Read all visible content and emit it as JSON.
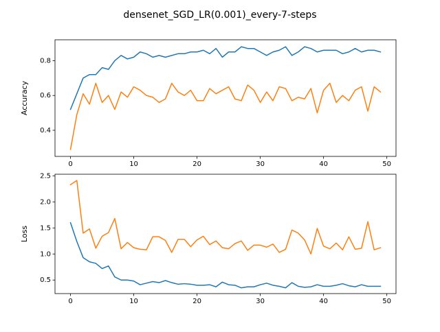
{
  "figure": {
    "title": "densenet_SGD_LR(0.001)_every-7-steps"
  },
  "chart_data": [
    {
      "type": "line",
      "ylabel": "Accuracy",
      "xlabel": "",
      "xlim": [
        -2.45,
        51.45
      ],
      "ylim": [
        0.25,
        0.92
      ],
      "xticks": [
        0,
        10,
        20,
        30,
        40,
        50
      ],
      "yticks": [
        0.4,
        0.6,
        0.8
      ],
      "ytick_labels": [
        "0.4",
        "0.6",
        "0.8"
      ],
      "x": [
        0,
        1,
        2,
        3,
        4,
        5,
        6,
        7,
        8,
        9,
        10,
        11,
        12,
        13,
        14,
        15,
        16,
        17,
        18,
        19,
        20,
        21,
        22,
        23,
        24,
        25,
        26,
        27,
        28,
        29,
        30,
        31,
        32,
        33,
        34,
        35,
        36,
        37,
        38,
        39,
        40,
        41,
        42,
        43,
        44,
        45,
        46,
        47,
        48,
        49
      ],
      "series": [
        {
          "color": "#1f77b4",
          "values": [
            0.52,
            0.61,
            0.7,
            0.72,
            0.72,
            0.76,
            0.75,
            0.8,
            0.83,
            0.81,
            0.82,
            0.85,
            0.84,
            0.82,
            0.83,
            0.82,
            0.83,
            0.84,
            0.84,
            0.85,
            0.85,
            0.86,
            0.84,
            0.87,
            0.82,
            0.85,
            0.85,
            0.88,
            0.87,
            0.87,
            0.85,
            0.83,
            0.85,
            0.86,
            0.88,
            0.83,
            0.85,
            0.88,
            0.87,
            0.85,
            0.86,
            0.86,
            0.86,
            0.84,
            0.85,
            0.87,
            0.85,
            0.86,
            0.86,
            0.85
          ]
        },
        {
          "color": "#ff7f0e",
          "values": [
            0.29,
            0.49,
            0.61,
            0.55,
            0.67,
            0.56,
            0.6,
            0.52,
            0.62,
            0.59,
            0.65,
            0.63,
            0.6,
            0.59,
            0.56,
            0.58,
            0.67,
            0.62,
            0.6,
            0.63,
            0.57,
            0.57,
            0.64,
            0.61,
            0.63,
            0.65,
            0.58,
            0.57,
            0.66,
            0.63,
            0.56,
            0.62,
            0.57,
            0.65,
            0.64,
            0.57,
            0.59,
            0.58,
            0.64,
            0.5,
            0.63,
            0.67,
            0.56,
            0.6,
            0.57,
            0.63,
            0.65,
            0.51,
            0.65,
            0.62
          ]
        }
      ]
    },
    {
      "type": "line",
      "ylabel": "Loss",
      "xlabel": "",
      "xlim": [
        -2.45,
        51.45
      ],
      "ylim": [
        0.24,
        2.53
      ],
      "xticks": [
        0,
        10,
        20,
        30,
        40,
        50
      ],
      "yticks": [
        0.5,
        1.0,
        1.5,
        2.0,
        2.5
      ],
      "ytick_labels": [
        "0.5",
        "1.0",
        "1.5",
        "2.0",
        "2.5"
      ],
      "x": [
        0,
        1,
        2,
        3,
        4,
        5,
        6,
        7,
        8,
        9,
        10,
        11,
        12,
        13,
        14,
        15,
        16,
        17,
        18,
        19,
        20,
        21,
        22,
        23,
        24,
        25,
        26,
        27,
        28,
        29,
        30,
        31,
        32,
        33,
        34,
        35,
        36,
        37,
        38,
        39,
        40,
        41,
        42,
        43,
        44,
        45,
        46,
        47,
        48,
        49
      ],
      "series": [
        {
          "color": "#1f77b4",
          "values": [
            1.6,
            1.24,
            0.93,
            0.85,
            0.82,
            0.72,
            0.77,
            0.56,
            0.5,
            0.5,
            0.48,
            0.41,
            0.44,
            0.47,
            0.45,
            0.49,
            0.45,
            0.42,
            0.43,
            0.42,
            0.4,
            0.4,
            0.41,
            0.37,
            0.46,
            0.41,
            0.4,
            0.35,
            0.37,
            0.37,
            0.41,
            0.44,
            0.4,
            0.38,
            0.35,
            0.45,
            0.38,
            0.36,
            0.37,
            0.41,
            0.38,
            0.38,
            0.4,
            0.43,
            0.39,
            0.37,
            0.41,
            0.38,
            0.38,
            0.38
          ]
        },
        {
          "color": "#ff7f0e",
          "values": [
            2.33,
            2.41,
            1.4,
            1.48,
            1.11,
            1.34,
            1.41,
            1.68,
            1.1,
            1.22,
            1.12,
            1.09,
            1.08,
            1.33,
            1.33,
            1.26,
            1.03,
            1.28,
            1.28,
            1.14,
            1.27,
            1.34,
            1.18,
            1.25,
            1.12,
            1.1,
            1.2,
            1.25,
            1.07,
            1.17,
            1.17,
            1.13,
            1.19,
            1.03,
            1.09,
            1.46,
            1.4,
            1.27,
            1.0,
            1.49,
            1.15,
            1.1,
            1.21,
            1.08,
            1.33,
            1.09,
            1.11,
            1.62,
            1.08,
            1.12
          ]
        }
      ]
    }
  ]
}
